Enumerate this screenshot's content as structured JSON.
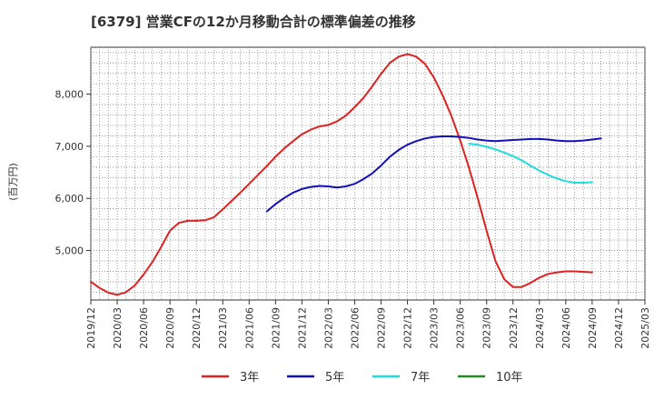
{
  "chart_data": {
    "type": "line",
    "title": "[6379]  営業CFの12か月移動合計の標準偏差の推移",
    "ylabel": "(百万円)",
    "xlabel": "",
    "ylim": [
      4050,
      8900
    ],
    "xlim": [
      "2019-12",
      "2025-03"
    ],
    "yticks": [
      5000,
      6000,
      7000,
      8000
    ],
    "ytick_labels": [
      "5,000",
      "6,000",
      "7,000",
      "8,000"
    ],
    "xtick_labels": [
      "2019/12",
      "2020/03",
      "2020/06",
      "2020/09",
      "2020/12",
      "2021/03",
      "2021/06",
      "2021/09",
      "2021/12",
      "2022/03",
      "2022/06",
      "2022/09",
      "2022/12",
      "2023/03",
      "2023/06",
      "2023/09",
      "2023/12",
      "2024/03",
      "2024/06",
      "2024/09",
      "2024/12",
      "2025/03"
    ],
    "grid": true,
    "legend_position": "bottom",
    "series": [
      {
        "name": "3年",
        "color": "#dd2222",
        "start": "2019-12",
        "values": [
          4400,
          4280,
          4190,
          4150,
          4200,
          4330,
          4540,
          4780,
          5070,
          5380,
          5530,
          5570,
          5570,
          5580,
          5640,
          5790,
          5950,
          6110,
          6280,
          6450,
          6620,
          6800,
          6960,
          7100,
          7230,
          7320,
          7380,
          7410,
          7480,
          7590,
          7750,
          7930,
          8150,
          8390,
          8600,
          8720,
          8770,
          8720,
          8580,
          8320,
          7980,
          7580,
          7110,
          6590,
          6000,
          5380,
          4800,
          4450,
          4300,
          4300,
          4380,
          4480,
          4550,
          4580,
          4600,
          4600,
          4590,
          4580
        ]
      },
      {
        "name": "5年",
        "color": "#1111bb",
        "start": "2021-08",
        "values": [
          5750,
          5890,
          6010,
          6110,
          6180,
          6220,
          6240,
          6230,
          6210,
          6230,
          6280,
          6370,
          6480,
          6630,
          6800,
          6930,
          7030,
          7100,
          7150,
          7180,
          7190,
          7190,
          7180,
          7160,
          7130,
          7110,
          7100,
          7110,
          7120,
          7130,
          7140,
          7140,
          7130,
          7110,
          7100,
          7100,
          7110,
          7130,
          7150
        ]
      },
      {
        "name": "7年",
        "color": "#22dddd",
        "start": "2023-07",
        "values": [
          7050,
          7030,
          6990,
          6940,
          6880,
          6810,
          6730,
          6630,
          6530,
          6450,
          6380,
          6330,
          6300,
          6300,
          6310
        ]
      },
      {
        "name": "10年",
        "color": "#228822",
        "start": "2024-09",
        "values": []
      }
    ]
  }
}
